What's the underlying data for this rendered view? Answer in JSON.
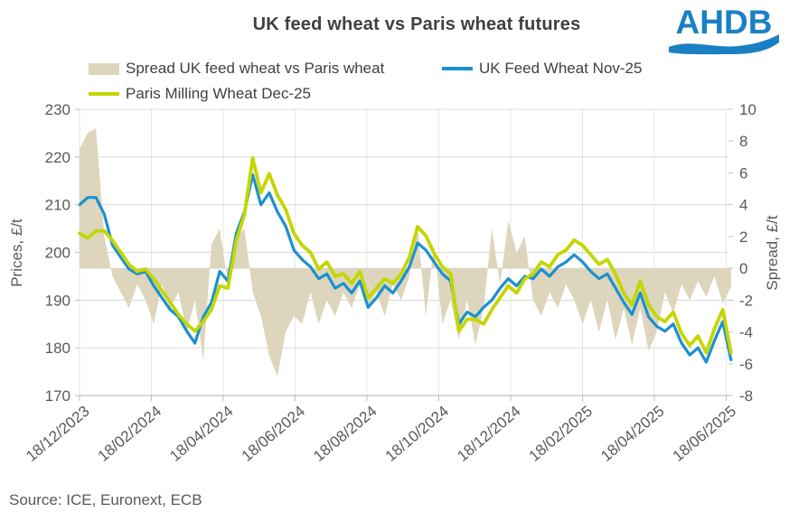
{
  "title": "UK feed wheat vs Paris wheat futures",
  "logo": {
    "text": "AHDB",
    "color": "#1a80c4"
  },
  "source": "Source: ICE, Euronext, ECB",
  "legend": {
    "items": [
      {
        "label": "Spread UK feed wheat vs Paris wheat",
        "type": "area",
        "color": "#ddd6bc"
      },
      {
        "label": "UK Feed Wheat Nov-25",
        "type": "line",
        "color": "#1b90cf"
      },
      {
        "label": "Paris Milling Wheat Dec-25",
        "type": "line",
        "color": "#c4d600"
      }
    ]
  },
  "colors": {
    "grid_h": "#d9d9d9",
    "grid_v": "#e7e7e0",
    "axis_line": "#bfbfbf",
    "axis_text": "#595959"
  },
  "chart_data": {
    "type": "combo",
    "title": "UK feed wheat vs Paris wheat futures",
    "left_axis": {
      "title": "Prices, £/t",
      "range": [
        170,
        230
      ],
      "ticks": [
        170,
        180,
        190,
        200,
        210,
        220,
        230
      ]
    },
    "right_axis": {
      "title": "Spread, £/t",
      "range": [
        -8,
        10
      ],
      "ticks": [
        -8,
        -6,
        -4,
        -2,
        0,
        2,
        4,
        6,
        8,
        10
      ]
    },
    "x_tick_labels": [
      "18/12/2023",
      "18/02/2024",
      "18/04/2024",
      "18/06/2024",
      "18/08/2024",
      "18/10/2024",
      "18/12/2024",
      "18/02/2025",
      "18/04/2025",
      "18/06/2025"
    ],
    "grid": {
      "horizontal": true,
      "vertical": true
    },
    "legend_position": "top-left",
    "dates": [
      "18/12/2023",
      "25/12/2023",
      "01/01/2024",
      "08/01/2024",
      "15/01/2024",
      "22/01/2024",
      "29/01/2024",
      "05/02/2024",
      "12/02/2024",
      "19/02/2024",
      "26/02/2024",
      "04/03/2024",
      "11/03/2024",
      "18/03/2024",
      "25/03/2024",
      "01/04/2024",
      "08/04/2024",
      "15/04/2024",
      "22/04/2024",
      "29/04/2024",
      "06/05/2024",
      "13/05/2024",
      "20/05/2024",
      "27/05/2024",
      "03/06/2024",
      "10/06/2024",
      "17/06/2024",
      "24/06/2024",
      "01/07/2024",
      "08/07/2024",
      "15/07/2024",
      "22/07/2024",
      "29/07/2024",
      "05/08/2024",
      "12/08/2024",
      "19/08/2024",
      "26/08/2024",
      "02/09/2024",
      "09/09/2024",
      "16/09/2024",
      "23/09/2024",
      "30/09/2024",
      "07/10/2024",
      "14/10/2024",
      "21/10/2024",
      "28/10/2024",
      "04/11/2024",
      "11/11/2024",
      "18/11/2024",
      "25/11/2024",
      "02/12/2024",
      "09/12/2024",
      "16/12/2024",
      "23/12/2024",
      "30/12/2024",
      "06/01/2025",
      "13/01/2025",
      "20/01/2025",
      "27/01/2025",
      "03/02/2025",
      "10/02/2025",
      "17/02/2025",
      "24/02/2025",
      "03/03/2025",
      "10/03/2025",
      "17/03/2025",
      "24/03/2025",
      "31/03/2025",
      "07/04/2025",
      "14/04/2025",
      "21/04/2025",
      "28/04/2025",
      "05/05/2025",
      "12/05/2025",
      "19/05/2025",
      "26/05/2025",
      "02/06/2025",
      "09/06/2025",
      "16/06/2025",
      "23/06/2025"
    ],
    "series": [
      {
        "name": "Spread UK feed wheat vs Paris wheat",
        "type": "area",
        "axis": "right",
        "color": "#ddd6bc",
        "values": [
          7.5,
          8.5,
          8.8,
          2.0,
          -0.5,
          -1.5,
          -2.5,
          -1.0,
          -2.0,
          -3.5,
          -1.0,
          -2.5,
          -1.5,
          -4.0,
          -2.0,
          -5.8,
          1.5,
          2.5,
          -1.0,
          2.0,
          2.5,
          -1.5,
          -3.0,
          -5.5,
          -6.8,
          -4.0,
          -3.0,
          -3.5,
          -1.5,
          -3.5,
          -2.0,
          -3.0,
          -1.5,
          -2.5,
          -1.0,
          -2.5,
          -1.5,
          -3.0,
          -1.0,
          -2.0,
          -0.5,
          2.5,
          -3.0,
          1.5,
          -3.5,
          -2.0,
          -4.5,
          -2.0,
          -4.8,
          -2.5,
          2.5,
          -1.0,
          3.0,
          1.0,
          2.0,
          -2.0,
          -3.0,
          -1.5,
          -2.5,
          -1.0,
          -2.0,
          -3.5,
          -2.0,
          -4.0,
          -2.0,
          -4.5,
          -2.5,
          -4.8,
          -2.5,
          -5.2,
          -4.0,
          -1.5,
          -2.8,
          -1.0,
          -2.0,
          -0.8,
          -1.8,
          -0.5,
          -2.2,
          -1.2
        ]
      },
      {
        "name": "UK Feed Wheat Nov-25",
        "type": "line",
        "axis": "left",
        "color": "#1b90cf",
        "values": [
          210.0,
          211.5,
          211.5,
          208.0,
          201.5,
          199.0,
          196.5,
          195.5,
          196.0,
          193.0,
          190.5,
          188.0,
          186.5,
          183.5,
          181.0,
          186.5,
          189.5,
          196.0,
          194.0,
          204.0,
          208.5,
          216.3,
          210.0,
          212.5,
          208.5,
          205.5,
          200.5,
          198.5,
          197.0,
          194.5,
          195.5,
          192.5,
          193.5,
          191.5,
          194.0,
          188.5,
          190.5,
          193.0,
          191.5,
          194.0,
          197.0,
          202.0,
          200.5,
          198.0,
          195.5,
          194.0,
          185.0,
          187.5,
          186.5,
          188.5,
          190.0,
          192.5,
          194.5,
          193.0,
          195.0,
          194.5,
          196.5,
          195.0,
          197.0,
          198.0,
          199.5,
          198.0,
          196.0,
          194.5,
          195.5,
          192.5,
          189.5,
          187.0,
          191.5,
          186.5,
          184.5,
          183.5,
          185.0,
          181.0,
          178.5,
          180.0,
          177.0,
          181.5,
          185.5,
          177.5
        ]
      },
      {
        "name": "Paris Milling Wheat Dec-25",
        "type": "line",
        "axis": "left",
        "color": "#c4d600",
        "values": [
          204.0,
          203.0,
          204.5,
          204.5,
          202.5,
          200.0,
          197.5,
          196.0,
          196.5,
          194.5,
          192.0,
          189.5,
          187.0,
          185.0,
          183.5,
          185.5,
          188.0,
          193.0,
          192.5,
          202.5,
          208.0,
          219.8,
          212.5,
          216.5,
          212.0,
          209.0,
          204.0,
          201.5,
          200.0,
          196.5,
          198.0,
          195.0,
          195.5,
          193.5,
          196.0,
          190.5,
          192.5,
          194.5,
          193.5,
          195.5,
          199.0,
          205.4,
          203.5,
          199.8,
          197.0,
          195.5,
          183.5,
          186.0,
          186.0,
          185.0,
          188.0,
          190.5,
          193.0,
          191.5,
          194.5,
          195.5,
          198.0,
          197.0,
          199.5,
          200.5,
          202.6,
          201.5,
          199.5,
          197.5,
          198.5,
          195.5,
          191.5,
          189.0,
          194.0,
          189.0,
          186.5,
          185.5,
          187.5,
          183.0,
          180.5,
          182.5,
          179.0,
          184.0,
          188.0,
          179.0
        ]
      }
    ]
  }
}
